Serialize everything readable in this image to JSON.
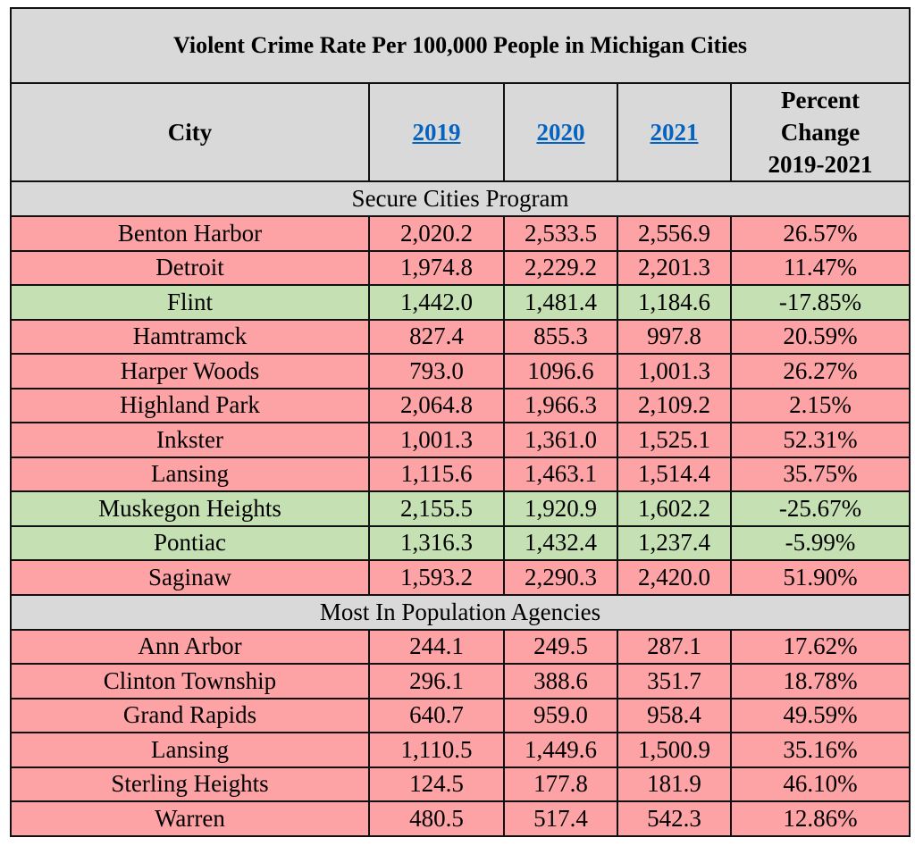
{
  "title": "Violent Crime Rate Per 100,000 People in Michigan Cities",
  "columns": [
    "City",
    "2019",
    "2020",
    "2021",
    "Percent Change 2019-2021"
  ],
  "colors": {
    "header_bg": "#d9d9d9",
    "increase_bg": "#fea3a5",
    "decrease_bg": "#c5e0b3",
    "link": "#0563c1"
  },
  "sections": [
    {
      "label": "Secure Cities Program",
      "rows": [
        {
          "city": "Benton Harbor",
          "y2019": "2,020.2",
          "y2020": "2,533.5",
          "y2021": "2,556.9",
          "change": "26.57%",
          "trend": "up"
        },
        {
          "city": "Detroit",
          "y2019": "1,974.8",
          "y2020": "2,229.2",
          "y2021": "2,201.3",
          "change": "11.47%",
          "trend": "up"
        },
        {
          "city": "Flint",
          "y2019": "1,442.0",
          "y2020": "1,481.4",
          "y2021": "1,184.6",
          "change": "-17.85%",
          "trend": "down"
        },
        {
          "city": "Hamtramck",
          "y2019": "827.4",
          "y2020": "855.3",
          "y2021": "997.8",
          "change": "20.59%",
          "trend": "up"
        },
        {
          "city": "Harper Woods",
          "y2019": "793.0",
          "y2020": "1096.6",
          "y2021": "1,001.3",
          "change": "26.27%",
          "trend": "up"
        },
        {
          "city": "Highland Park",
          "y2019": "2,064.8",
          "y2020": "1,966.3",
          "y2021": "2,109.2",
          "change": "2.15%",
          "trend": "up"
        },
        {
          "city": "Inkster",
          "y2019": "1,001.3",
          "y2020": "1,361.0",
          "y2021": "1,525.1",
          "change": "52.31%",
          "trend": "up"
        },
        {
          "city": "Lansing",
          "y2019": "1,115.6",
          "y2020": "1,463.1",
          "y2021": "1,514.4",
          "change": "35.75%",
          "trend": "up"
        },
        {
          "city": "Muskegon Heights",
          "y2019": "2,155.5",
          "y2020": "1,920.9",
          "y2021": "1,602.2",
          "change": "-25.67%",
          "trend": "down"
        },
        {
          "city": "Pontiac",
          "y2019": "1,316.3",
          "y2020": "1,432.4",
          "y2021": "1,237.4",
          "change": "-5.99%",
          "trend": "down"
        },
        {
          "city": "Saginaw",
          "y2019": "1,593.2",
          "y2020": "2,290.3",
          "y2021": "2,420.0",
          "change": "51.90%",
          "trend": "up"
        }
      ]
    },
    {
      "label": "Most In Population Agencies",
      "rows": [
        {
          "city": "Ann Arbor",
          "y2019": "244.1",
          "y2020": "249.5",
          "y2021": "287.1",
          "change": "17.62%",
          "trend": "up"
        },
        {
          "city": "Clinton Township",
          "y2019": "296.1",
          "y2020": "388.6",
          "y2021": "351.7",
          "change": "18.78%",
          "trend": "up"
        },
        {
          "city": "Grand Rapids",
          "y2019": "640.7",
          "y2020": "959.0",
          "y2021": "958.4",
          "change": "49.59%",
          "trend": "up"
        },
        {
          "city": "Lansing",
          "y2019": "1,110.5",
          "y2020": "1,449.6",
          "y2021": "1,500.9",
          "change": "35.16%",
          "trend": "up"
        },
        {
          "city": "Sterling Heights",
          "y2019": "124.5",
          "y2020": "177.8",
          "y2021": "181.9",
          "change": "46.10%",
          "trend": "up"
        },
        {
          "city": "Warren",
          "y2019": "480.5",
          "y2020": "517.4",
          "y2021": "542.3",
          "change": "12.86%",
          "trend": "up"
        }
      ]
    }
  ]
}
